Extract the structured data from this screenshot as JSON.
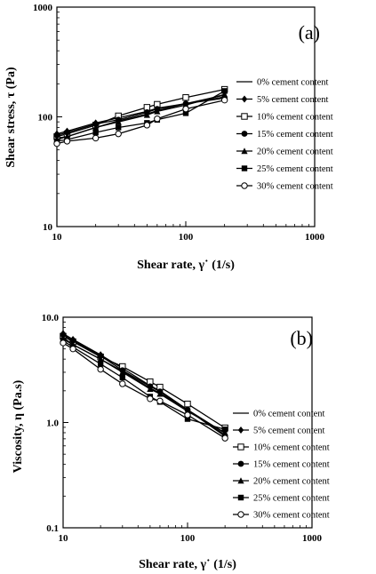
{
  "chart_data": [
    {
      "type": "line",
      "panel_label": "(a)",
      "xlabel": "Shear rate, γ˙ (1/s)",
      "ylabel": "Shear stress, τ (Pa)",
      "xscale": "log",
      "yscale": "log",
      "xlim": [
        10,
        1000
      ],
      "ylim": [
        10,
        1000
      ],
      "x_ticks": [
        "10",
        "100",
        "1000"
      ],
      "y_ticks": [
        "10",
        "100",
        "1000"
      ],
      "grid": false,
      "legend_position": "right",
      "series": [
        {
          "name": "0% cement content",
          "marker": "none",
          "x": [
            10,
            12,
            20,
            30,
            50,
            60,
            100,
            200
          ],
          "y": [
            64,
            66,
            80,
            92,
            106,
            114,
            132,
            158
          ]
        },
        {
          "name": "5% cement content",
          "marker": "diamond",
          "x": [
            10,
            12,
            20,
            30,
            50,
            60,
            100,
            200
          ],
          "y": [
            70,
            74,
            88,
            98,
            112,
            120,
            132,
            152
          ]
        },
        {
          "name": "10% cement content",
          "marker": "square-open",
          "x": [
            10,
            12,
            20,
            30,
            50,
            60,
            100,
            200
          ],
          "y": [
            66,
            70,
            84,
            102,
            122,
            130,
            150,
            178
          ]
        },
        {
          "name": "15% cement content",
          "marker": "circle-filled",
          "x": [
            10,
            12,
            20,
            30,
            50,
            60,
            100,
            200
          ],
          "y": [
            68,
            72,
            86,
            94,
            110,
            118,
            132,
            148
          ]
        },
        {
          "name": "20% cement content",
          "marker": "triangle",
          "x": [
            10,
            12,
            20,
            30,
            50,
            60,
            100,
            200
          ],
          "y": [
            62,
            66,
            80,
            90,
            104,
            112,
            128,
            160
          ]
        },
        {
          "name": "25% cement content",
          "marker": "square-filled",
          "x": [
            10,
            12,
            20,
            30,
            50,
            60,
            100,
            200
          ],
          "y": [
            60,
            62,
            72,
            80,
            88,
            94,
            108,
            172
          ]
        },
        {
          "name": "30% cement content",
          "marker": "circle-open",
          "x": [
            10,
            12,
            20,
            30,
            50,
            60,
            100,
            200
          ],
          "y": [
            57,
            60,
            64,
            70,
            84,
            96,
            118,
            142
          ]
        }
      ]
    },
    {
      "type": "line",
      "panel_label": "(b)",
      "xlabel": "Shear rate, γ˙ (1/s)",
      "ylabel": "Viscosity, η (Pa.s)",
      "xscale": "log",
      "yscale": "log",
      "xlim": [
        10,
        1000
      ],
      "ylim": [
        0.1,
        10
      ],
      "x_ticks": [
        "10",
        "100",
        "1000"
      ],
      "y_ticks": [
        "0.1",
        "1.0",
        "10.0"
      ],
      "grid": false,
      "legend_position": "right",
      "series": [
        {
          "name": "0% cement content",
          "marker": "none",
          "x": [
            10,
            12,
            20,
            30,
            50,
            60,
            100,
            200
          ],
          "y": [
            6.4,
            5.5,
            4.0,
            3.07,
            2.12,
            1.9,
            1.32,
            0.79
          ]
        },
        {
          "name": "5% cement content",
          "marker": "diamond",
          "x": [
            10,
            12,
            20,
            30,
            50,
            60,
            100,
            200
          ],
          "y": [
            7.0,
            6.15,
            4.4,
            3.27,
            2.24,
            2.0,
            1.32,
            0.76
          ]
        },
        {
          "name": "10% cement content",
          "marker": "square-open",
          "x": [
            10,
            12,
            20,
            30,
            50,
            60,
            100,
            200
          ],
          "y": [
            6.6,
            5.85,
            4.2,
            3.4,
            2.44,
            2.17,
            1.5,
            0.89
          ]
        },
        {
          "name": "15% cement content",
          "marker": "circle-filled",
          "x": [
            10,
            12,
            20,
            30,
            50,
            60,
            100,
            200
          ],
          "y": [
            6.8,
            6.0,
            4.3,
            3.13,
            2.2,
            1.97,
            1.32,
            0.74
          ]
        },
        {
          "name": "20% cement content",
          "marker": "triangle",
          "x": [
            10,
            12,
            20,
            30,
            50,
            60,
            100,
            200
          ],
          "y": [
            6.2,
            5.5,
            4.0,
            3.0,
            2.08,
            1.87,
            1.28,
            0.8
          ]
        },
        {
          "name": "25% cement content",
          "marker": "square-filled",
          "x": [
            10,
            12,
            20,
            30,
            50,
            60,
            100,
            200
          ],
          "y": [
            6.0,
            5.2,
            3.6,
            2.67,
            1.76,
            1.57,
            1.08,
            0.86
          ]
        },
        {
          "name": "30% cement content",
          "marker": "circle-open",
          "x": [
            10,
            12,
            20,
            30,
            50,
            60,
            100,
            200
          ],
          "y": [
            5.7,
            5.0,
            3.2,
            2.33,
            1.68,
            1.6,
            1.18,
            0.71
          ]
        }
      ]
    }
  ]
}
